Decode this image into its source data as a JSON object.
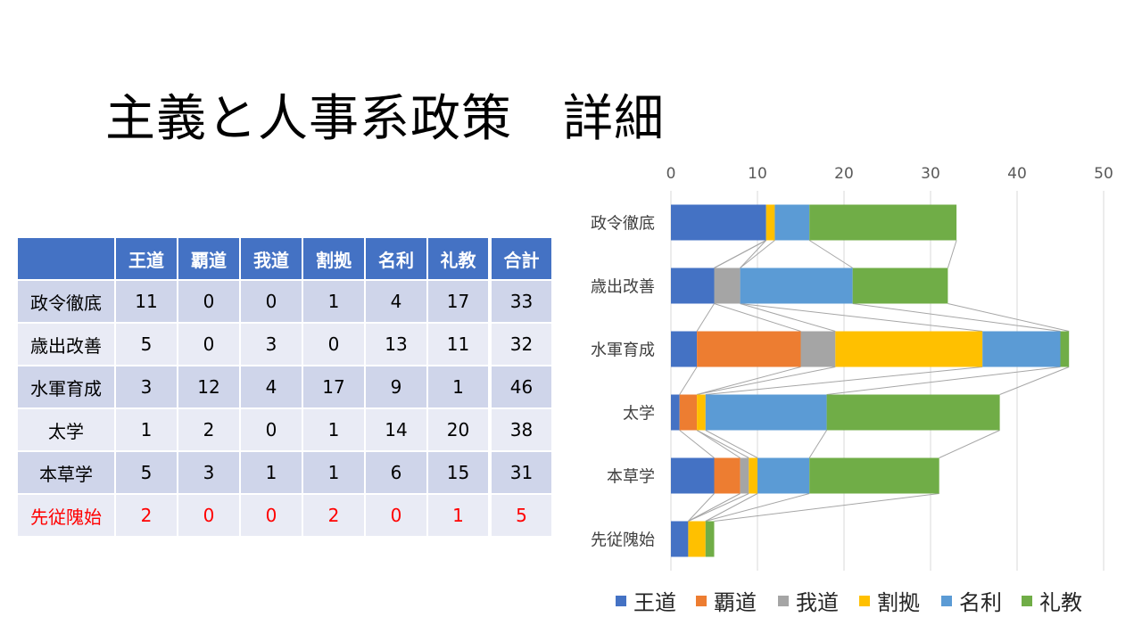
{
  "title": "主義と人事系政策　詳細",
  "table": {
    "headers": [
      "",
      "王道",
      "覇道",
      "我道",
      "割拠",
      "名利",
      "礼教",
      "合計"
    ],
    "rows": [
      {
        "name": "政令徹底",
        "values": [
          "11",
          "0",
          "0",
          "1",
          "4",
          "17"
        ],
        "total": "33",
        "highlight": false
      },
      {
        "name": "歳出改善",
        "values": [
          "5",
          "0",
          "3",
          "0",
          "13",
          "11"
        ],
        "total": "32",
        "highlight": false
      },
      {
        "name": "水軍育成",
        "values": [
          "3",
          "12",
          "4",
          "17",
          "9",
          "1"
        ],
        "total": "46",
        "highlight": false
      },
      {
        "name": "太学",
        "values": [
          "1",
          "2",
          "0",
          "1",
          "14",
          "20"
        ],
        "total": "38",
        "highlight": false
      },
      {
        "name": "本草学",
        "values": [
          "5",
          "3",
          "1",
          "1",
          "6",
          "15"
        ],
        "total": "31",
        "highlight": false
      },
      {
        "name": "先従隗始",
        "values": [
          "2",
          "0",
          "0",
          "2",
          "0",
          "1"
        ],
        "total": "5",
        "highlight": true
      }
    ]
  },
  "colors": {
    "table_header_bg": "#4472c4",
    "table_row_dark": "#cfd5ea",
    "table_row_light": "#e9ebf5",
    "highlight_text": "#ff0000",
    "gridline": "#d9d9d9",
    "connector": "#a6a6a6"
  },
  "chart_data": {
    "type": "bar",
    "orientation": "horizontal",
    "stacked": true,
    "series_lines": true,
    "categories": [
      "政令徹底",
      "歳出改善",
      "水軍育成",
      "太学",
      "本草学",
      "先従隗始"
    ],
    "series": [
      {
        "name": "王道",
        "color": "#4472c4",
        "values": [
          11,
          5,
          3,
          1,
          5,
          2
        ]
      },
      {
        "name": "覇道",
        "color": "#ed7d31",
        "values": [
          0,
          0,
          12,
          2,
          3,
          0
        ]
      },
      {
        "name": "我道",
        "color": "#a5a5a5",
        "values": [
          0,
          3,
          4,
          0,
          1,
          0
        ]
      },
      {
        "name": "割拠",
        "color": "#ffc000",
        "values": [
          1,
          0,
          17,
          1,
          1,
          2
        ]
      },
      {
        "name": "名利",
        "color": "#5b9bd5",
        "values": [
          4,
          13,
          9,
          14,
          6,
          0
        ]
      },
      {
        "name": "礼教",
        "color": "#70ad47",
        "values": [
          17,
          11,
          1,
          20,
          15,
          1
        ]
      }
    ],
    "xlim": [
      0,
      50
    ],
    "xticks": [
      "0",
      "10",
      "20",
      "30",
      "40",
      "50"
    ],
    "axis_position": "top",
    "grid": true,
    "legend": "bottom"
  }
}
